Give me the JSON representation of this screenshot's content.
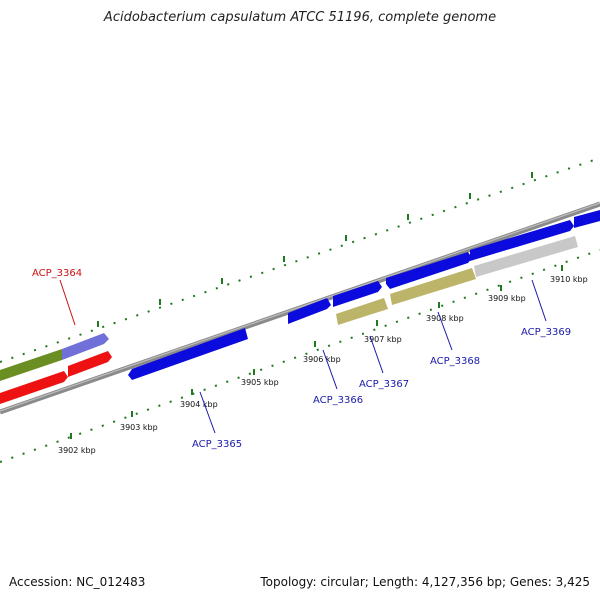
{
  "title": "Acidobacterium capsulatum ATCC 51196, complete genome",
  "footer": {
    "accession": "Accession: NC_012483",
    "summary": "Topology: circular; Length: 4,127,356 bp; Genes: 3,425"
  },
  "colors": {
    "backbone": "#8a8a8a",
    "tick": "#1e7a1e",
    "label_blue": "#1a1aaa",
    "label_red": "#cc1111"
  },
  "ticks": [
    "3902 kbp",
    "3903 kbp",
    "3904 kbp",
    "3905 kbp",
    "3906 kbp",
    "3907 kbp",
    "3908 kbp",
    "3909 kbp",
    "3910 kbp"
  ],
  "genes": [
    {
      "label": "ACP_3364",
      "color": "#cc1111"
    },
    {
      "label": "ACP_3365",
      "color": "#1a1aaa"
    },
    {
      "label": "ACP_3366",
      "color": "#1a1aaa"
    },
    {
      "label": "ACP_3367",
      "color": "#1a1aaa"
    },
    {
      "label": "ACP_3368",
      "color": "#1a1aaa"
    },
    {
      "label": "ACP_3369",
      "color": "#1a1aaa"
    }
  ]
}
